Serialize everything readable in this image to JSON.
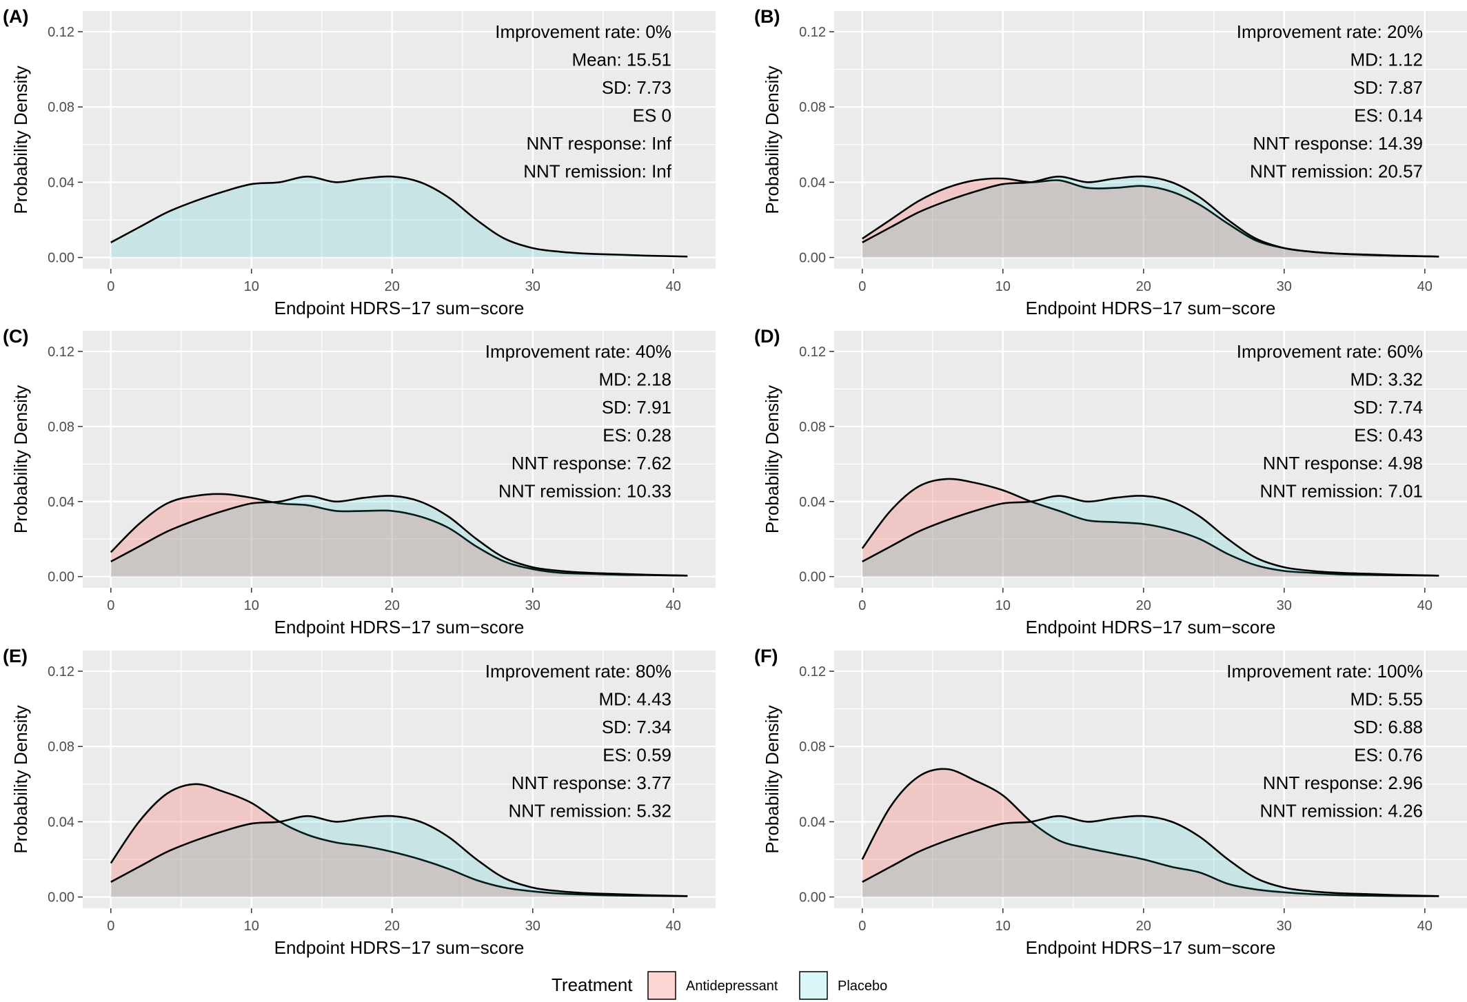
{
  "colors": {
    "antidepressant": "#f8766d",
    "placebo": "#00bfc4",
    "panel_bg": "#ebebeb",
    "grid": "#ffffff",
    "line": "#000000"
  },
  "legend": {
    "title": "Treatment",
    "items": [
      "Antidepressant",
      "Placebo"
    ]
  },
  "chart_data": [
    {
      "type": "area",
      "panel": "(A)",
      "xlabel": "Endpoint HDRS−17 sum−score",
      "ylabel": "Probability Density",
      "xlim": [
        -2,
        43
      ],
      "ylim": [
        -0.006,
        0.131
      ],
      "xticks": [
        0,
        10,
        20,
        30,
        40
      ],
      "yticks": [
        "0.00",
        "0.04",
        "0.08",
        "0.12"
      ],
      "annotations": [
        "Improvement rate: 0%",
        "Mean:  15.51",
        "SD:  7.73",
        "ES 0",
        "NNT response:  Inf",
        "NNT remission:  Inf"
      ],
      "x": [
        0,
        2,
        4,
        6,
        8,
        10,
        12,
        14,
        16,
        18,
        20,
        22,
        24,
        26,
        28,
        30,
        32,
        34,
        36,
        38,
        41
      ],
      "series": [
        {
          "name": "Placebo",
          "values": [
            0.008,
            0.016,
            0.024,
            0.03,
            0.035,
            0.039,
            0.04,
            0.043,
            0.04,
            0.042,
            0.043,
            0.04,
            0.032,
            0.02,
            0.01,
            0.005,
            0.003,
            0.002,
            0.0015,
            0.001,
            0.0005
          ]
        }
      ]
    },
    {
      "type": "area",
      "panel": "(B)",
      "xlabel": "Endpoint HDRS−17 sum−score",
      "ylabel": "Probability Density",
      "xlim": [
        -2,
        43
      ],
      "ylim": [
        -0.006,
        0.131
      ],
      "xticks": [
        0,
        10,
        20,
        30,
        40
      ],
      "yticks": [
        "0.00",
        "0.04",
        "0.08",
        "0.12"
      ],
      "annotations": [
        "Improvement rate: 20%",
        "MD:  1.12",
        "SD:  7.87",
        "ES:  0.14",
        "NNT response:  14.39",
        "NNT remission:  20.57"
      ],
      "x": [
        0,
        2,
        4,
        6,
        8,
        10,
        12,
        14,
        16,
        18,
        20,
        22,
        24,
        26,
        28,
        30,
        32,
        34,
        36,
        38,
        41
      ],
      "series": [
        {
          "name": "Antidepressant",
          "values": [
            0.01,
            0.02,
            0.03,
            0.037,
            0.041,
            0.042,
            0.04,
            0.041,
            0.037,
            0.037,
            0.038,
            0.035,
            0.028,
            0.018,
            0.009,
            0.005,
            0.003,
            0.002,
            0.0013,
            0.0009,
            0.0005
          ]
        },
        {
          "name": "Placebo",
          "values": [
            0.008,
            0.016,
            0.024,
            0.03,
            0.035,
            0.039,
            0.04,
            0.043,
            0.04,
            0.042,
            0.043,
            0.04,
            0.032,
            0.02,
            0.01,
            0.005,
            0.003,
            0.002,
            0.0015,
            0.001,
            0.0005
          ]
        }
      ]
    },
    {
      "type": "area",
      "panel": "(C)",
      "xlabel": "Endpoint HDRS−17 sum−score",
      "ylabel": "Probability Density",
      "xlim": [
        -2,
        43
      ],
      "ylim": [
        -0.006,
        0.131
      ],
      "xticks": [
        0,
        10,
        20,
        30,
        40
      ],
      "yticks": [
        "0.00",
        "0.04",
        "0.08",
        "0.12"
      ],
      "annotations": [
        "Improvement rate: 40%",
        "MD:  2.18",
        "SD:  7.91",
        "ES:  0.28",
        "NNT response:  7.62",
        "NNT remission:  10.33"
      ],
      "x": [
        0,
        2,
        4,
        6,
        8,
        10,
        12,
        14,
        16,
        18,
        20,
        22,
        24,
        26,
        28,
        30,
        32,
        34,
        36,
        38,
        41
      ],
      "series": [
        {
          "name": "Antidepressant",
          "values": [
            0.013,
            0.028,
            0.039,
            0.043,
            0.044,
            0.042,
            0.039,
            0.038,
            0.035,
            0.035,
            0.035,
            0.032,
            0.026,
            0.016,
            0.008,
            0.004,
            0.002,
            0.0015,
            0.001,
            0.0008,
            0.0005
          ]
        },
        {
          "name": "Placebo",
          "values": [
            0.008,
            0.016,
            0.024,
            0.03,
            0.035,
            0.039,
            0.04,
            0.043,
            0.04,
            0.042,
            0.043,
            0.04,
            0.032,
            0.02,
            0.01,
            0.005,
            0.003,
            0.002,
            0.0015,
            0.001,
            0.0005
          ]
        }
      ]
    },
    {
      "type": "area",
      "panel": "(D)",
      "xlabel": "Endpoint HDRS−17 sum−score",
      "ylabel": "Probability Density",
      "xlim": [
        -2,
        43
      ],
      "ylim": [
        -0.006,
        0.131
      ],
      "xticks": [
        0,
        10,
        20,
        30,
        40
      ],
      "yticks": [
        "0.00",
        "0.04",
        "0.08",
        "0.12"
      ],
      "annotations": [
        "Improvement rate: 60%",
        "MD:  3.32",
        "SD:  7.74",
        "ES:  0.43",
        "NNT response:  4.98",
        "NNT remission:  7.01"
      ],
      "x": [
        0,
        2,
        4,
        6,
        8,
        10,
        12,
        14,
        16,
        18,
        20,
        22,
        24,
        26,
        28,
        30,
        32,
        34,
        36,
        38,
        41
      ],
      "series": [
        {
          "name": "Antidepressant",
          "values": [
            0.015,
            0.035,
            0.048,
            0.052,
            0.05,
            0.046,
            0.04,
            0.035,
            0.03,
            0.029,
            0.028,
            0.025,
            0.02,
            0.012,
            0.006,
            0.003,
            0.002,
            0.0012,
            0.0009,
            0.0007,
            0.0005
          ]
        },
        {
          "name": "Placebo",
          "values": [
            0.008,
            0.016,
            0.024,
            0.03,
            0.035,
            0.039,
            0.04,
            0.043,
            0.04,
            0.042,
            0.043,
            0.04,
            0.032,
            0.02,
            0.01,
            0.005,
            0.003,
            0.002,
            0.0015,
            0.001,
            0.0005
          ]
        }
      ]
    },
    {
      "type": "area",
      "panel": "(E)",
      "xlabel": "Endpoint HDRS−17 sum−score",
      "ylabel": "Probability Density",
      "xlim": [
        -2,
        43
      ],
      "ylim": [
        -0.006,
        0.131
      ],
      "xticks": [
        0,
        10,
        20,
        30,
        40
      ],
      "yticks": [
        "0.00",
        "0.04",
        "0.08",
        "0.12"
      ],
      "annotations": [
        "Improvement rate: 80%",
        "MD:  4.43",
        "SD:  7.34",
        "ES:  0.59",
        "NNT response:  3.77",
        "NNT remission:  5.32"
      ],
      "x": [
        0,
        2,
        4,
        6,
        8,
        10,
        12,
        14,
        16,
        18,
        20,
        22,
        24,
        26,
        28,
        30,
        32,
        34,
        36,
        38,
        41
      ],
      "series": [
        {
          "name": "Antidepressant",
          "values": [
            0.018,
            0.04,
            0.055,
            0.06,
            0.056,
            0.05,
            0.04,
            0.033,
            0.029,
            0.027,
            0.024,
            0.02,
            0.015,
            0.009,
            0.005,
            0.003,
            0.0018,
            0.0012,
            0.0008,
            0.0006,
            0.0004
          ]
        },
        {
          "name": "Placebo",
          "values": [
            0.008,
            0.016,
            0.024,
            0.03,
            0.035,
            0.039,
            0.04,
            0.043,
            0.04,
            0.042,
            0.043,
            0.04,
            0.032,
            0.02,
            0.01,
            0.005,
            0.003,
            0.002,
            0.0015,
            0.001,
            0.0005
          ]
        }
      ]
    },
    {
      "type": "area",
      "panel": "(F)",
      "xlabel": "Endpoint HDRS−17 sum−score",
      "ylabel": "Probability Density",
      "xlim": [
        -2,
        43
      ],
      "ylim": [
        -0.006,
        0.131
      ],
      "xticks": [
        0,
        10,
        20,
        30,
        40
      ],
      "yticks": [
        "0.00",
        "0.04",
        "0.08",
        "0.12"
      ],
      "annotations": [
        "Improvement rate: 100%",
        "MD:  5.55",
        "SD:  6.88",
        "ES:  0.76",
        "NNT response:  2.96",
        "NNT remission:  4.26"
      ],
      "x": [
        0,
        2,
        4,
        6,
        8,
        10,
        12,
        14,
        16,
        18,
        20,
        22,
        24,
        26,
        28,
        30,
        32,
        34,
        36,
        38,
        41
      ],
      "series": [
        {
          "name": "Antidepressant",
          "values": [
            0.02,
            0.048,
            0.064,
            0.068,
            0.062,
            0.054,
            0.04,
            0.03,
            0.026,
            0.023,
            0.02,
            0.016,
            0.013,
            0.007,
            0.004,
            0.0025,
            0.0015,
            0.001,
            0.0007,
            0.0005,
            0.0004
          ]
        },
        {
          "name": "Placebo",
          "values": [
            0.008,
            0.016,
            0.024,
            0.03,
            0.035,
            0.039,
            0.04,
            0.043,
            0.04,
            0.042,
            0.043,
            0.04,
            0.032,
            0.02,
            0.01,
            0.005,
            0.003,
            0.002,
            0.0015,
            0.001,
            0.0005
          ]
        }
      ]
    }
  ]
}
